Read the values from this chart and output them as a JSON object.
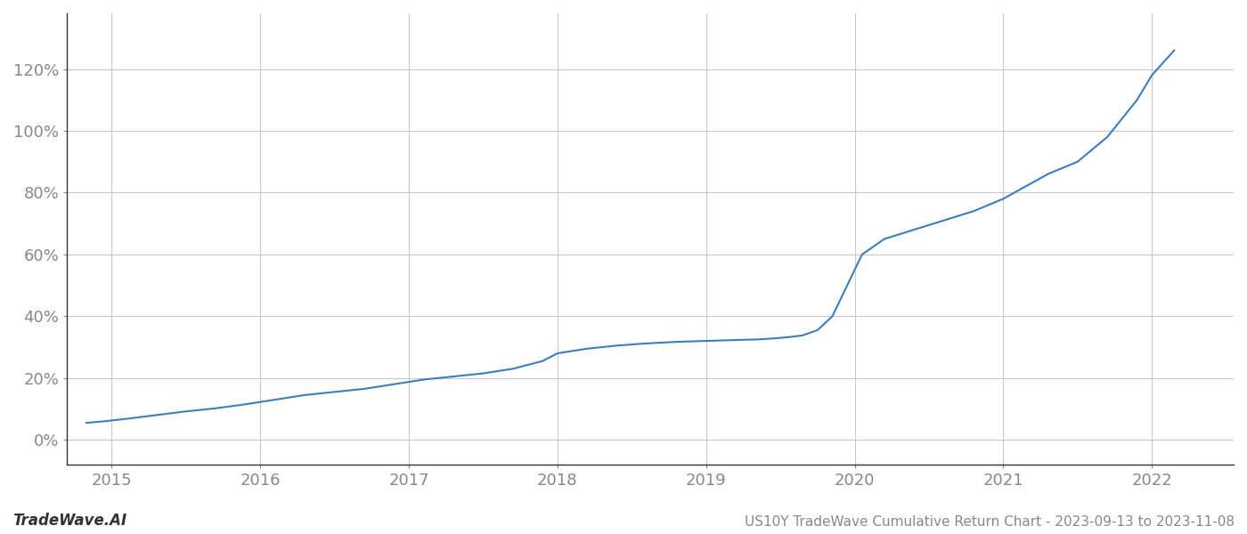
{
  "title": "US10Y TradeWave Cumulative Return Chart - 2023-09-13 to 2023-11-08",
  "watermark_left": "TradeWave.AI",
  "line_color": "#3a7ebf",
  "background_color": "#ffffff",
  "grid_color": "#c8c8c8",
  "x_ticks": [
    2015,
    2016,
    2017,
    2018,
    2019,
    2020,
    2021,
    2022
  ],
  "y_ticks": [
    0,
    20,
    40,
    60,
    80,
    100,
    120
  ],
  "xlim": [
    2014.7,
    2022.55
  ],
  "ylim": [
    -8,
    138
  ],
  "line_width": 1.5,
  "x_data": [
    2014.83,
    2014.95,
    2015.1,
    2015.3,
    2015.5,
    2015.7,
    2015.9,
    2016.1,
    2016.3,
    2016.5,
    2016.7,
    2016.9,
    2017.1,
    2017.3,
    2017.5,
    2017.7,
    2017.9,
    2018.0,
    2018.2,
    2018.4,
    2018.6,
    2018.8,
    2019.0,
    2019.2,
    2019.35,
    2019.45,
    2019.55,
    2019.65,
    2019.75,
    2019.85,
    2019.95,
    2020.05,
    2020.2,
    2020.4,
    2020.6,
    2020.8,
    2021.0,
    2021.15,
    2021.3,
    2021.5,
    2021.7,
    2021.9,
    2022.0,
    2022.15
  ],
  "y_data": [
    5.5,
    6.0,
    6.8,
    8.0,
    9.2,
    10.2,
    11.5,
    13.0,
    14.5,
    15.5,
    16.5,
    18.0,
    19.5,
    20.5,
    21.5,
    23.0,
    25.5,
    28.0,
    29.5,
    30.5,
    31.2,
    31.7,
    32.0,
    32.3,
    32.5,
    32.8,
    33.2,
    33.8,
    35.5,
    40.0,
    50.0,
    60.0,
    65.0,
    68.0,
    71.0,
    74.0,
    78.0,
    82.0,
    86.0,
    90.0,
    98.0,
    110.0,
    118.0,
    126.0
  ]
}
